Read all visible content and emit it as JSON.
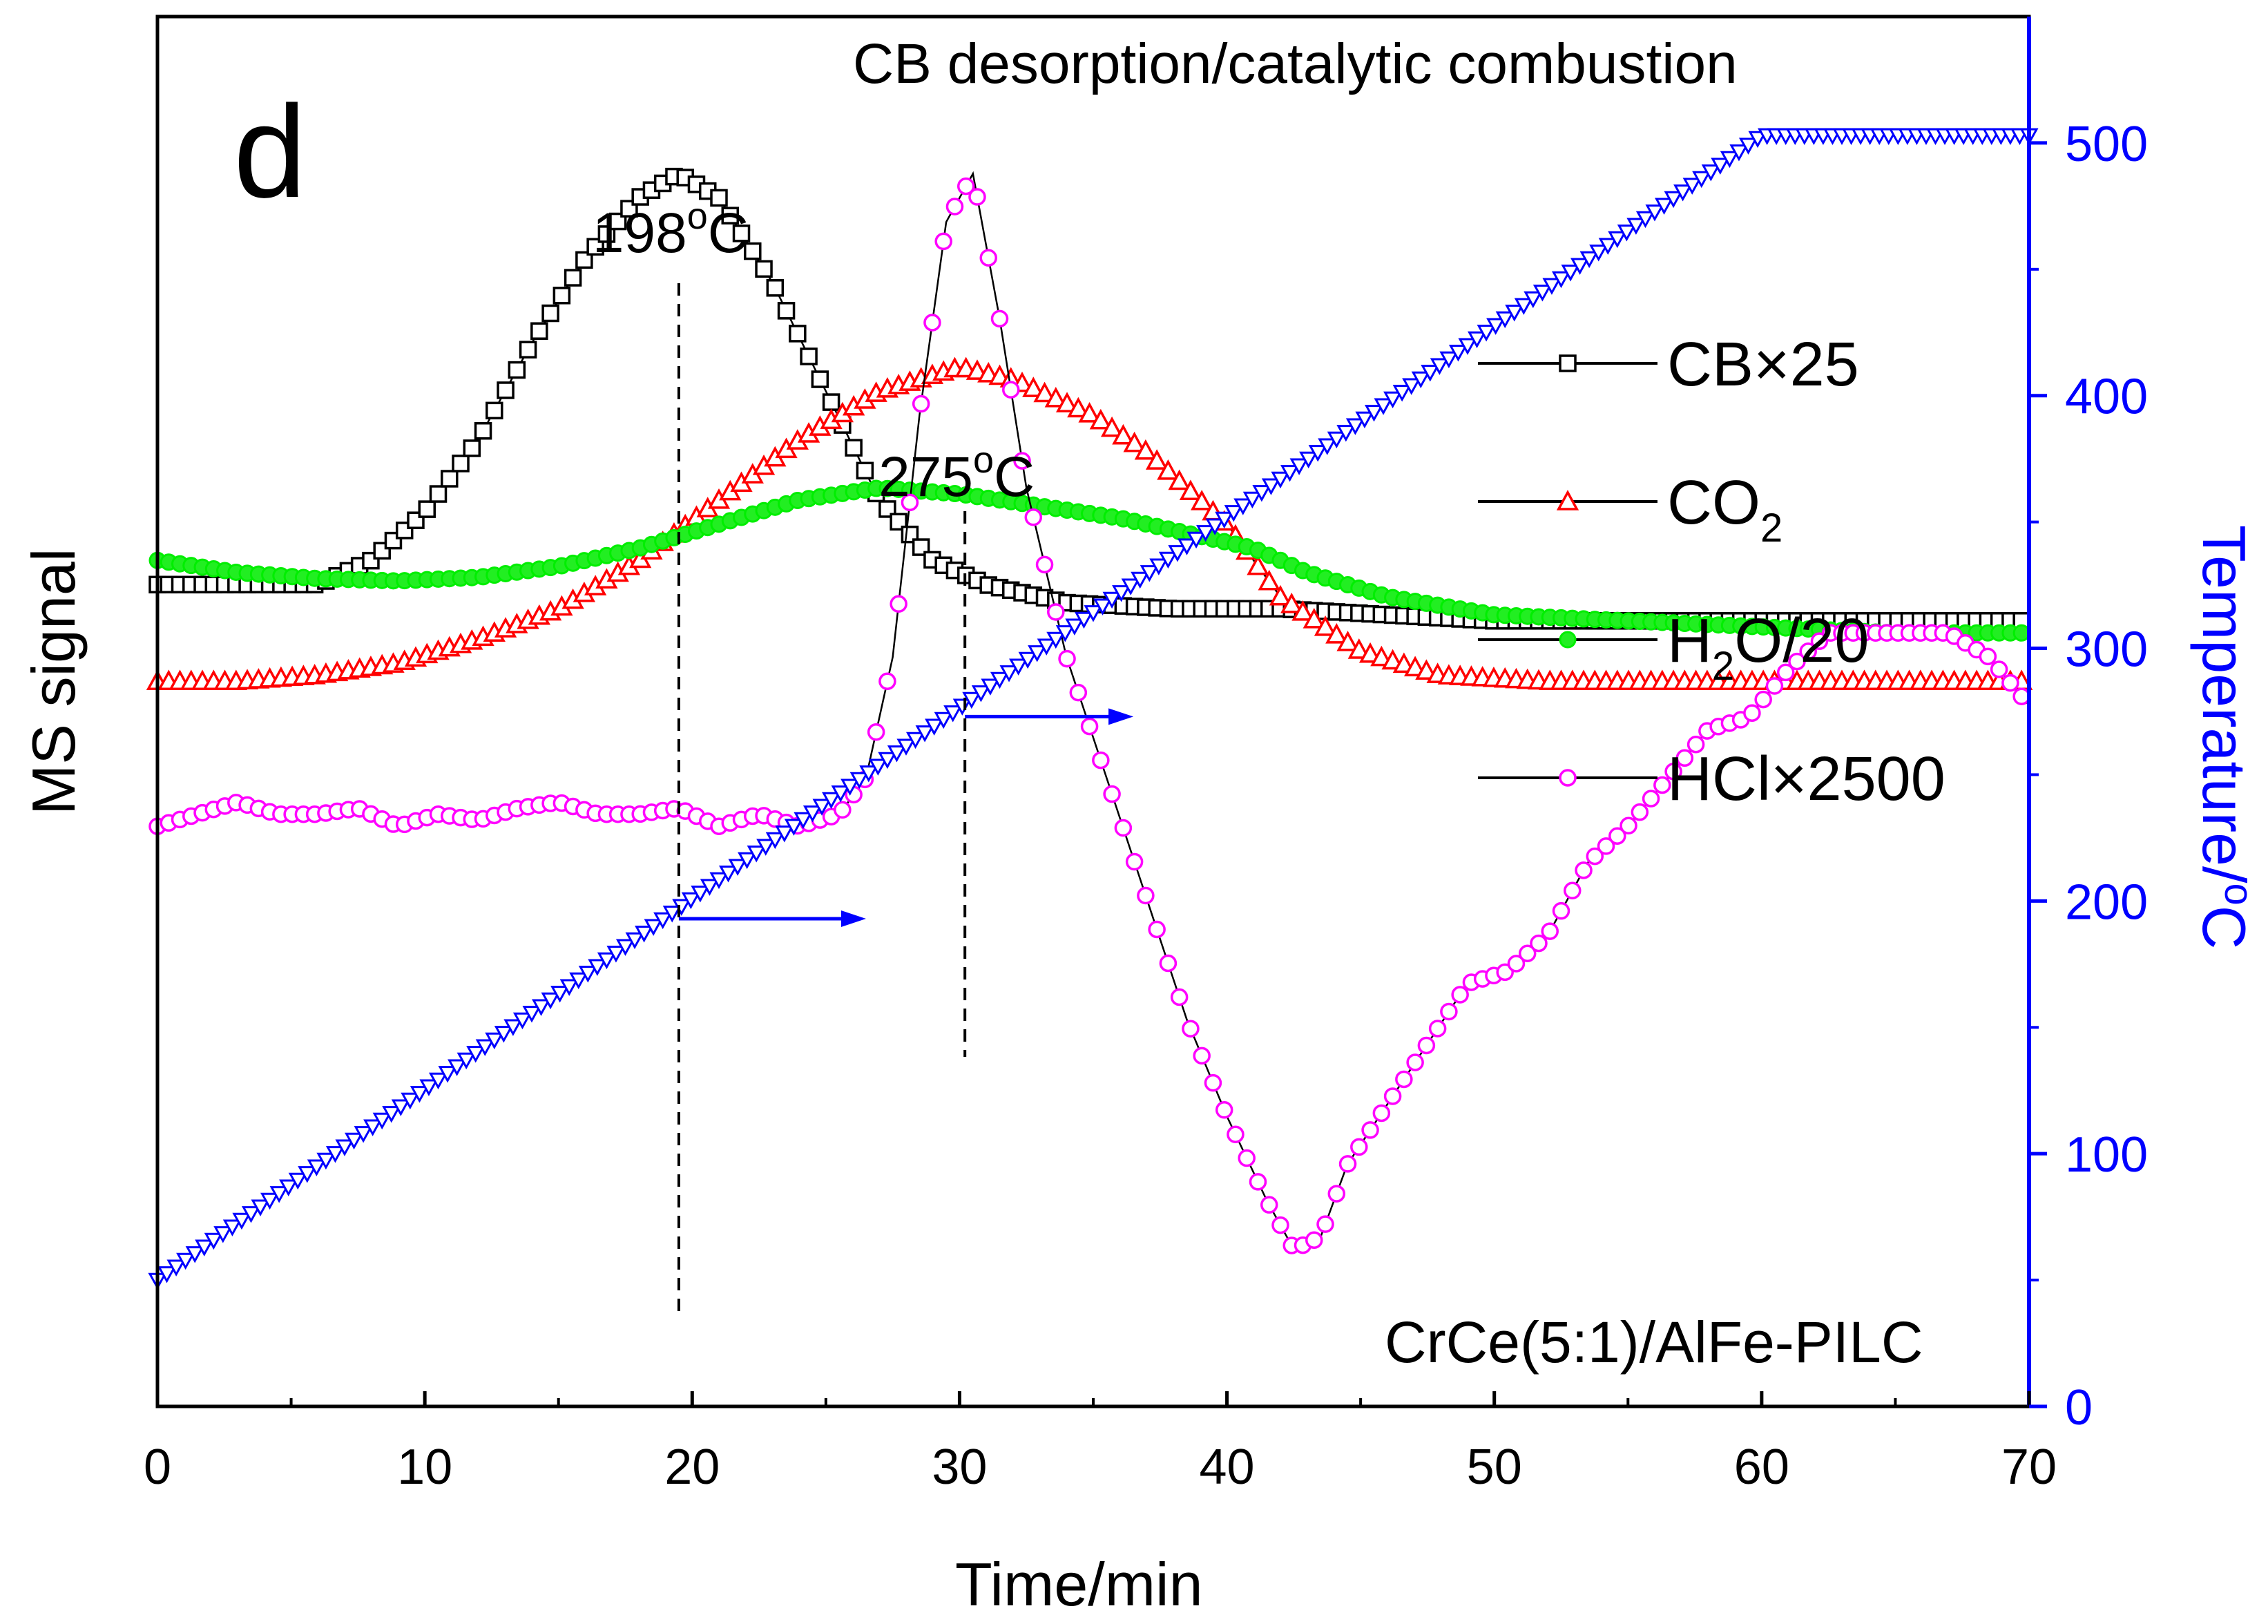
{
  "chart_data": {
    "type": "scatter",
    "panel_label": "d",
    "title": "CB desorption/catalytic combustion",
    "catalyst_label": "CrCe(5:1)/AlFe-PILC",
    "xlabel": "Time/min",
    "ylabel_left": "MS signal",
    "ylabel_right": "Temperature/",
    "ylabel_right_unit": "oC",
    "xlim": [
      0,
      70
    ],
    "ylim_right": [
      0,
      550
    ],
    "x_ticks": [
      "0",
      "10",
      "20",
      "30",
      "40",
      "50",
      "60",
      "70"
    ],
    "y_right_ticks": [
      "0",
      "100",
      "200",
      "300",
      "400",
      "500"
    ],
    "grid": false,
    "legend_position": "upper-right",
    "annotations": [
      {
        "text": "198",
        "sup": "o",
        "unit": "C",
        "x": 19.5
      },
      {
        "text": "275",
        "sup": "o",
        "unit": "C",
        "x": 30.2
      }
    ],
    "series": [
      {
        "name": "CB×25",
        "legend_main": "CB",
        "legend_sub": "",
        "legend_tail": "×25",
        "marker": "square-open",
        "color": "#000000",
        "x": [
          0,
          3,
          6,
          8,
          10,
          12,
          14,
          16,
          18,
          19.5,
          21,
          23,
          25,
          27,
          29,
          31,
          34,
          38,
          42,
          46,
          50,
          55,
          60,
          65,
          70
        ],
        "y": [
          0.68,
          0.68,
          0.68,
          0.7,
          0.74,
          0.8,
          0.88,
          0.95,
          1.0,
          1.02,
          1.0,
          0.93,
          0.84,
          0.75,
          0.7,
          0.68,
          0.665,
          0.66,
          0.66,
          0.655,
          0.65,
          0.65,
          0.65,
          0.65,
          0.65
        ]
      },
      {
        "name": "CO2",
        "legend_main": "CO",
        "legend_sub": "2",
        "legend_tail": "",
        "marker": "triangle-open",
        "color": "#ff0000",
        "x": [
          0,
          3,
          6,
          9,
          12,
          15,
          18,
          21,
          24,
          27,
          30,
          32,
          35,
          37,
          40,
          42,
          45,
          48,
          52,
          56,
          60,
          65,
          70
        ],
        "y": [
          0.6,
          0.6,
          0.605,
          0.615,
          0.635,
          0.66,
          0.7,
          0.75,
          0.8,
          0.84,
          0.86,
          0.85,
          0.82,
          0.79,
          0.73,
          0.67,
          0.625,
          0.605,
          0.6,
          0.6,
          0.6,
          0.6,
          0.6
        ]
      },
      {
        "name": "H2O/20",
        "legend_main": "H",
        "legend_sub": "2",
        "legend_tail": "O/20",
        "marker": "circle-filled",
        "color": "#00ee00",
        "x": [
          0,
          3,
          6,
          9,
          12,
          15,
          18,
          21,
          24,
          27,
          30,
          33,
          36,
          39,
          41,
          43,
          46,
          50,
          55,
          60,
          65,
          70
        ],
        "y": [
          0.7,
          0.69,
          0.685,
          0.683,
          0.686,
          0.695,
          0.71,
          0.73,
          0.75,
          0.76,
          0.755,
          0.745,
          0.735,
          0.72,
          0.71,
          0.69,
          0.67,
          0.655,
          0.65,
          0.645,
          0.64,
          0.64
        ]
      },
      {
        "name": "HCl×2500",
        "legend_main": "HCl",
        "legend_sub": "",
        "legend_tail": "×2500",
        "marker": "circle-open",
        "color": "#ff00ff",
        "x": [
          0,
          1.5,
          3,
          4.5,
          6,
          7.5,
          9,
          10.5,
          12,
          13.5,
          15,
          16.5,
          18,
          19.5,
          21,
          22.5,
          24,
          25.5,
          26.5,
          27.5,
          28.5,
          29.5,
          30.5,
          31.5,
          32.5,
          34,
          35.5,
          37,
          38.5,
          40,
          41.5,
          42.5,
          43.5,
          44.5,
          46,
          47.5,
          49,
          50.5,
          52,
          53.5,
          55,
          56.5,
          58,
          59.5,
          61,
          62.5,
          64,
          65.5,
          67,
          68.5,
          70
        ],
        "y": [
          0.48,
          0.49,
          0.5,
          0.49,
          0.49,
          0.495,
          0.48,
          0.49,
          0.485,
          0.495,
          0.5,
          0.49,
          0.49,
          0.495,
          0.48,
          0.49,
          0.48,
          0.49,
          0.52,
          0.62,
          0.82,
          0.98,
          1.02,
          0.9,
          0.76,
          0.62,
          0.52,
          0.42,
          0.32,
          0.24,
          0.17,
          0.13,
          0.14,
          0.2,
          0.25,
          0.3,
          0.35,
          0.36,
          0.39,
          0.45,
          0.48,
          0.52,
          0.56,
          0.57,
          0.61,
          0.64,
          0.64,
          0.64,
          0.64,
          0.62,
          0.58
        ]
      },
      {
        "name": "Temperature",
        "axis": "right",
        "marker": "triangle-down-open",
        "color": "#0000ff",
        "x": [
          0,
          60,
          70
        ],
        "y": [
          50,
          503,
          503
        ]
      }
    ],
    "arrows": [
      {
        "axis": "right",
        "x_start": 19.5,
        "x_end": 26.5,
        "y": 193,
        "color": "#0000ff"
      },
      {
        "axis": "right",
        "x_start": 30.2,
        "x_end": 36.5,
        "y": 273,
        "color": "#0000ff"
      }
    ]
  }
}
